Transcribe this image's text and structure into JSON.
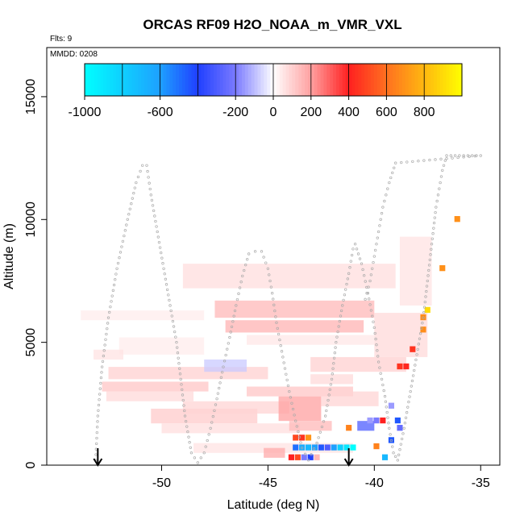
{
  "chart_data": {
    "type": "heatmap",
    "title": "ORCAS RF09 H2O_NOAA_m_VMR_VXL",
    "flights_note": "Flts: 9",
    "date_note": "MMDD: 0208",
    "xlabel": "Latitude (deg N)",
    "ylabel": "Altitude (m)",
    "xlim": [
      -55.4,
      -34.1
    ],
    "ylim": [
      0,
      17000
    ],
    "x_ticks": [
      -50,
      -45,
      -40,
      -35
    ],
    "y_ticks": [
      0,
      5000,
      10000,
      15000
    ],
    "colorbar": {
      "range": [
        -1000,
        1000
      ],
      "tick_values": [
        -1000,
        -600,
        -200,
        0,
        200,
        400,
        600,
        800
      ],
      "tick_labels": [
        "-1000",
        "-600",
        "-200",
        "0",
        "200",
        "400",
        "600",
        "800"
      ],
      "stops": [
        {
          "value": -1000,
          "color": "#00ffff"
        },
        {
          "value": -600,
          "color": "#1ea0ff"
        },
        {
          "value": -400,
          "color": "#2040ff"
        },
        {
          "value": -200,
          "color": "#7a7aff"
        },
        {
          "value": 0,
          "color": "#ffffff"
        },
        {
          "value": 200,
          "color": "#ffa0a0"
        },
        {
          "value": 400,
          "color": "#ff2020"
        },
        {
          "value": 600,
          "color": "#ff7020"
        },
        {
          "value": 1000,
          "color": "#ffff00"
        }
      ]
    },
    "arrows": [
      {
        "lat": -53.0
      },
      {
        "lat": -41.2
      }
    ],
    "layers": [
      {
        "lat": [
          -52.8,
          -47.8
        ],
        "alt": [
          3000,
          3400
        ],
        "value": 120
      },
      {
        "lat": [
          -52.6,
          -48.5
        ],
        "alt": [
          2600,
          3000
        ],
        "value": 80
      },
      {
        "lat": [
          -52.5,
          -45.0
        ],
        "alt": [
          3500,
          4000
        ],
        "value": 100
      },
      {
        "lat": [
          -50.5,
          -45.5
        ],
        "alt": [
          1700,
          2300
        ],
        "value": 110
      },
      {
        "lat": [
          -49.0,
          -44.0
        ],
        "alt": [
          2100,
          2600
        ],
        "value": 90
      },
      {
        "lat": [
          -50.0,
          -43.5
        ],
        "alt": [
          1300,
          1700
        ],
        "value": 70
      },
      {
        "lat": [
          -44.5,
          -42.5
        ],
        "alt": [
          1800,
          2800
        ],
        "value": 200
      },
      {
        "lat": [
          -44.0,
          -42.0
        ],
        "alt": [
          1400,
          1800
        ],
        "value": 150
      },
      {
        "lat": [
          -46.0,
          -41.0
        ],
        "alt": [
          2800,
          3200
        ],
        "value": 120
      },
      {
        "lat": [
          -42.5,
          -39.8
        ],
        "alt": [
          2400,
          3000
        ],
        "value": 90
      },
      {
        "lat": [
          -48.5,
          -41.0
        ],
        "alt": [
          500,
          900
        ],
        "value": 60
      },
      {
        "lat": [
          -52.0,
          -48.0
        ],
        "alt": [
          4500,
          5200
        ],
        "value": 40
      },
      {
        "lat": [
          -47.5,
          -40.0
        ],
        "alt": [
          6000,
          6700
        ],
        "value": 150
      },
      {
        "lat": [
          -47.0,
          -40.5
        ],
        "alt": [
          5400,
          5900
        ],
        "value": 160
      },
      {
        "lat": [
          -49.0,
          -39.0
        ],
        "alt": [
          7200,
          8200
        ],
        "value": 70
      },
      {
        "lat": [
          -46.0,
          -40.0
        ],
        "alt": [
          4900,
          5300
        ],
        "value": 50
      },
      {
        "lat": [
          -53.8,
          -48.0
        ],
        "alt": [
          5900,
          6300
        ],
        "value": 40
      },
      {
        "lat": [
          -43.0,
          -38.5
        ],
        "alt": [
          3800,
          4400
        ],
        "value": 100
      },
      {
        "lat": [
          -40.0,
          -37.5
        ],
        "alt": [
          4400,
          6200
        ],
        "value": 80
      },
      {
        "lat": [
          -38.8,
          -37.3
        ],
        "alt": [
          6500,
          9300
        ],
        "value": 60
      },
      {
        "lat": [
          -48.0,
          -46.0
        ],
        "alt": [
          3800,
          4300
        ],
        "value": -80
      },
      {
        "lat": [
          -43.0,
          -41.0
        ],
        "alt": [
          3300,
          3700
        ],
        "value": 80
      },
      {
        "lat": [
          -53.2,
          -51.8
        ],
        "alt": [
          4300,
          4700
        ],
        "value": 60
      },
      {
        "lat": [
          -45.2,
          -44.2
        ],
        "alt": [
          300,
          700
        ],
        "value": 180
      },
      {
        "lat": [
          -40.8,
          -40.0
        ],
        "alt": [
          1400,
          1800
        ],
        "value": -300
      }
    ],
    "cells": [
      {
        "lat": -43.7,
        "alt": 1000,
        "value": 500
      },
      {
        "lat": -43.4,
        "alt": 1000,
        "value": 450
      },
      {
        "lat": -43.1,
        "alt": 1000,
        "value": 700
      },
      {
        "lat": -43.7,
        "alt": 600,
        "value": -500
      },
      {
        "lat": -43.4,
        "alt": 600,
        "value": -650
      },
      {
        "lat": -43.1,
        "alt": 600,
        "value": -700
      },
      {
        "lat": -42.8,
        "alt": 600,
        "value": -600
      },
      {
        "lat": -42.5,
        "alt": 600,
        "value": -450
      },
      {
        "lat": -42.2,
        "alt": 600,
        "value": -300
      },
      {
        "lat": -41.9,
        "alt": 600,
        "value": -600
      },
      {
        "lat": -41.6,
        "alt": 600,
        "value": -800
      },
      {
        "lat": -41.3,
        "alt": 600,
        "value": -900
      },
      {
        "lat": -41.0,
        "alt": 600,
        "value": -1000
      },
      {
        "lat": -43.9,
        "alt": 200,
        "value": 400
      },
      {
        "lat": -43.6,
        "alt": 200,
        "value": 500
      },
      {
        "lat": -43.3,
        "alt": 200,
        "value": -200
      },
      {
        "lat": -43.0,
        "alt": 200,
        "value": -400
      },
      {
        "lat": -42.7,
        "alt": 200,
        "value": 150
      },
      {
        "lat": -41.2,
        "alt": 1400,
        "value": 650
      },
      {
        "lat": -40.2,
        "alt": 1700,
        "value": -150
      },
      {
        "lat": -39.9,
        "alt": 1700,
        "value": -200
      },
      {
        "lat": -39.6,
        "alt": 1700,
        "value": 400
      },
      {
        "lat": -38.9,
        "alt": 1700,
        "value": -450
      },
      {
        "lat": -39.2,
        "alt": 2300,
        "value": -150
      },
      {
        "lat": -38.8,
        "alt": 1400,
        "value": -250
      },
      {
        "lat": -39.9,
        "alt": 650,
        "value": 650
      },
      {
        "lat": -39.2,
        "alt": 900,
        "value": -450
      },
      {
        "lat": -39.5,
        "alt": 200,
        "value": -700
      },
      {
        "lat": -38.8,
        "alt": 3900,
        "value": 450
      },
      {
        "lat": -38.5,
        "alt": 3900,
        "value": 420
      },
      {
        "lat": -38.2,
        "alt": 4600,
        "value": 450
      },
      {
        "lat": -37.7,
        "alt": 5400,
        "value": 680
      },
      {
        "lat": -37.7,
        "alt": 5900,
        "value": 680
      },
      {
        "lat": -37.5,
        "alt": 6200,
        "value": 900
      },
      {
        "lat": -36.8,
        "alt": 7900,
        "value": 690
      },
      {
        "lat": -36.1,
        "alt": 9900,
        "value": 690
      }
    ],
    "flight_track": [
      [
        -53.1,
        200
      ],
      [
        -53.0,
        2000
      ],
      [
        -52.8,
        4000
      ],
      [
        -52.5,
        6000
      ],
      [
        -52.1,
        8000
      ],
      [
        -51.6,
        10000
      ],
      [
        -51.2,
        11500
      ],
      [
        -50.9,
        12200
      ],
      [
        -50.7,
        12200
      ],
      [
        -50.5,
        11000
      ],
      [
        -50.2,
        9500
      ],
      [
        -49.9,
        8000
      ],
      [
        -49.6,
        6500
      ],
      [
        -49.3,
        5000
      ],
      [
        -49.1,
        3500
      ],
      [
        -48.9,
        2000
      ],
      [
        -48.6,
        500
      ],
      [
        -48.3,
        100
      ],
      [
        -48.0,
        500
      ],
      [
        -47.7,
        1500
      ],
      [
        -47.4,
        2700
      ],
      [
        -47.1,
        4000
      ],
      [
        -46.8,
        5200
      ],
      [
        -46.5,
        6500
      ],
      [
        -46.2,
        7700
      ],
      [
        -45.9,
        8600
      ],
      [
        -45.6,
        8700
      ],
      [
        -45.3,
        8700
      ],
      [
        -45.0,
        8000
      ],
      [
        -44.8,
        7000
      ],
      [
        -44.6,
        5800
      ],
      [
        -44.3,
        4400
      ],
      [
        -44.0,
        3000
      ],
      [
        -43.7,
        1800
      ],
      [
        -43.4,
        700
      ],
      [
        -43.1,
        200
      ],
      [
        -42.7,
        900
      ],
      [
        -42.3,
        2000
      ],
      [
        -42.0,
        3500
      ],
      [
        -41.8,
        5000
      ],
      [
        -41.5,
        6500
      ],
      [
        -41.2,
        7800
      ],
      [
        -41.0,
        8800
      ],
      [
        -40.9,
        9000
      ],
      [
        -40.6,
        8200
      ],
      [
        -40.3,
        7000
      ],
      [
        -40.0,
        5600
      ],
      [
        -39.8,
        4200
      ],
      [
        -39.5,
        2800
      ],
      [
        -39.3,
        1500
      ],
      [
        -39.1,
        500
      ],
      [
        -38.9,
        200
      ],
      [
        -38.6,
        1500
      ],
      [
        -38.3,
        3000
      ],
      [
        -38.0,
        4500
      ],
      [
        -37.7,
        6000
      ],
      [
        -37.5,
        7500
      ],
      [
        -37.3,
        9000
      ],
      [
        -37.1,
        10500
      ],
      [
        -36.9,
        11500
      ],
      [
        -36.8,
        12000
      ],
      [
        -36.6,
        12600
      ],
      [
        -36.2,
        12600
      ],
      [
        -35.8,
        12600
      ],
      [
        -35.4,
        12600
      ],
      [
        -35.0,
        12600
      ],
      [
        -39.0,
        12300
      ],
      [
        -39.3,
        11500
      ],
      [
        -39.6,
        10500
      ],
      [
        -39.8,
        9500
      ],
      [
        -40.0,
        8500
      ],
      [
        -40.2,
        7500
      ],
      [
        -40.5,
        6500
      ]
    ]
  }
}
